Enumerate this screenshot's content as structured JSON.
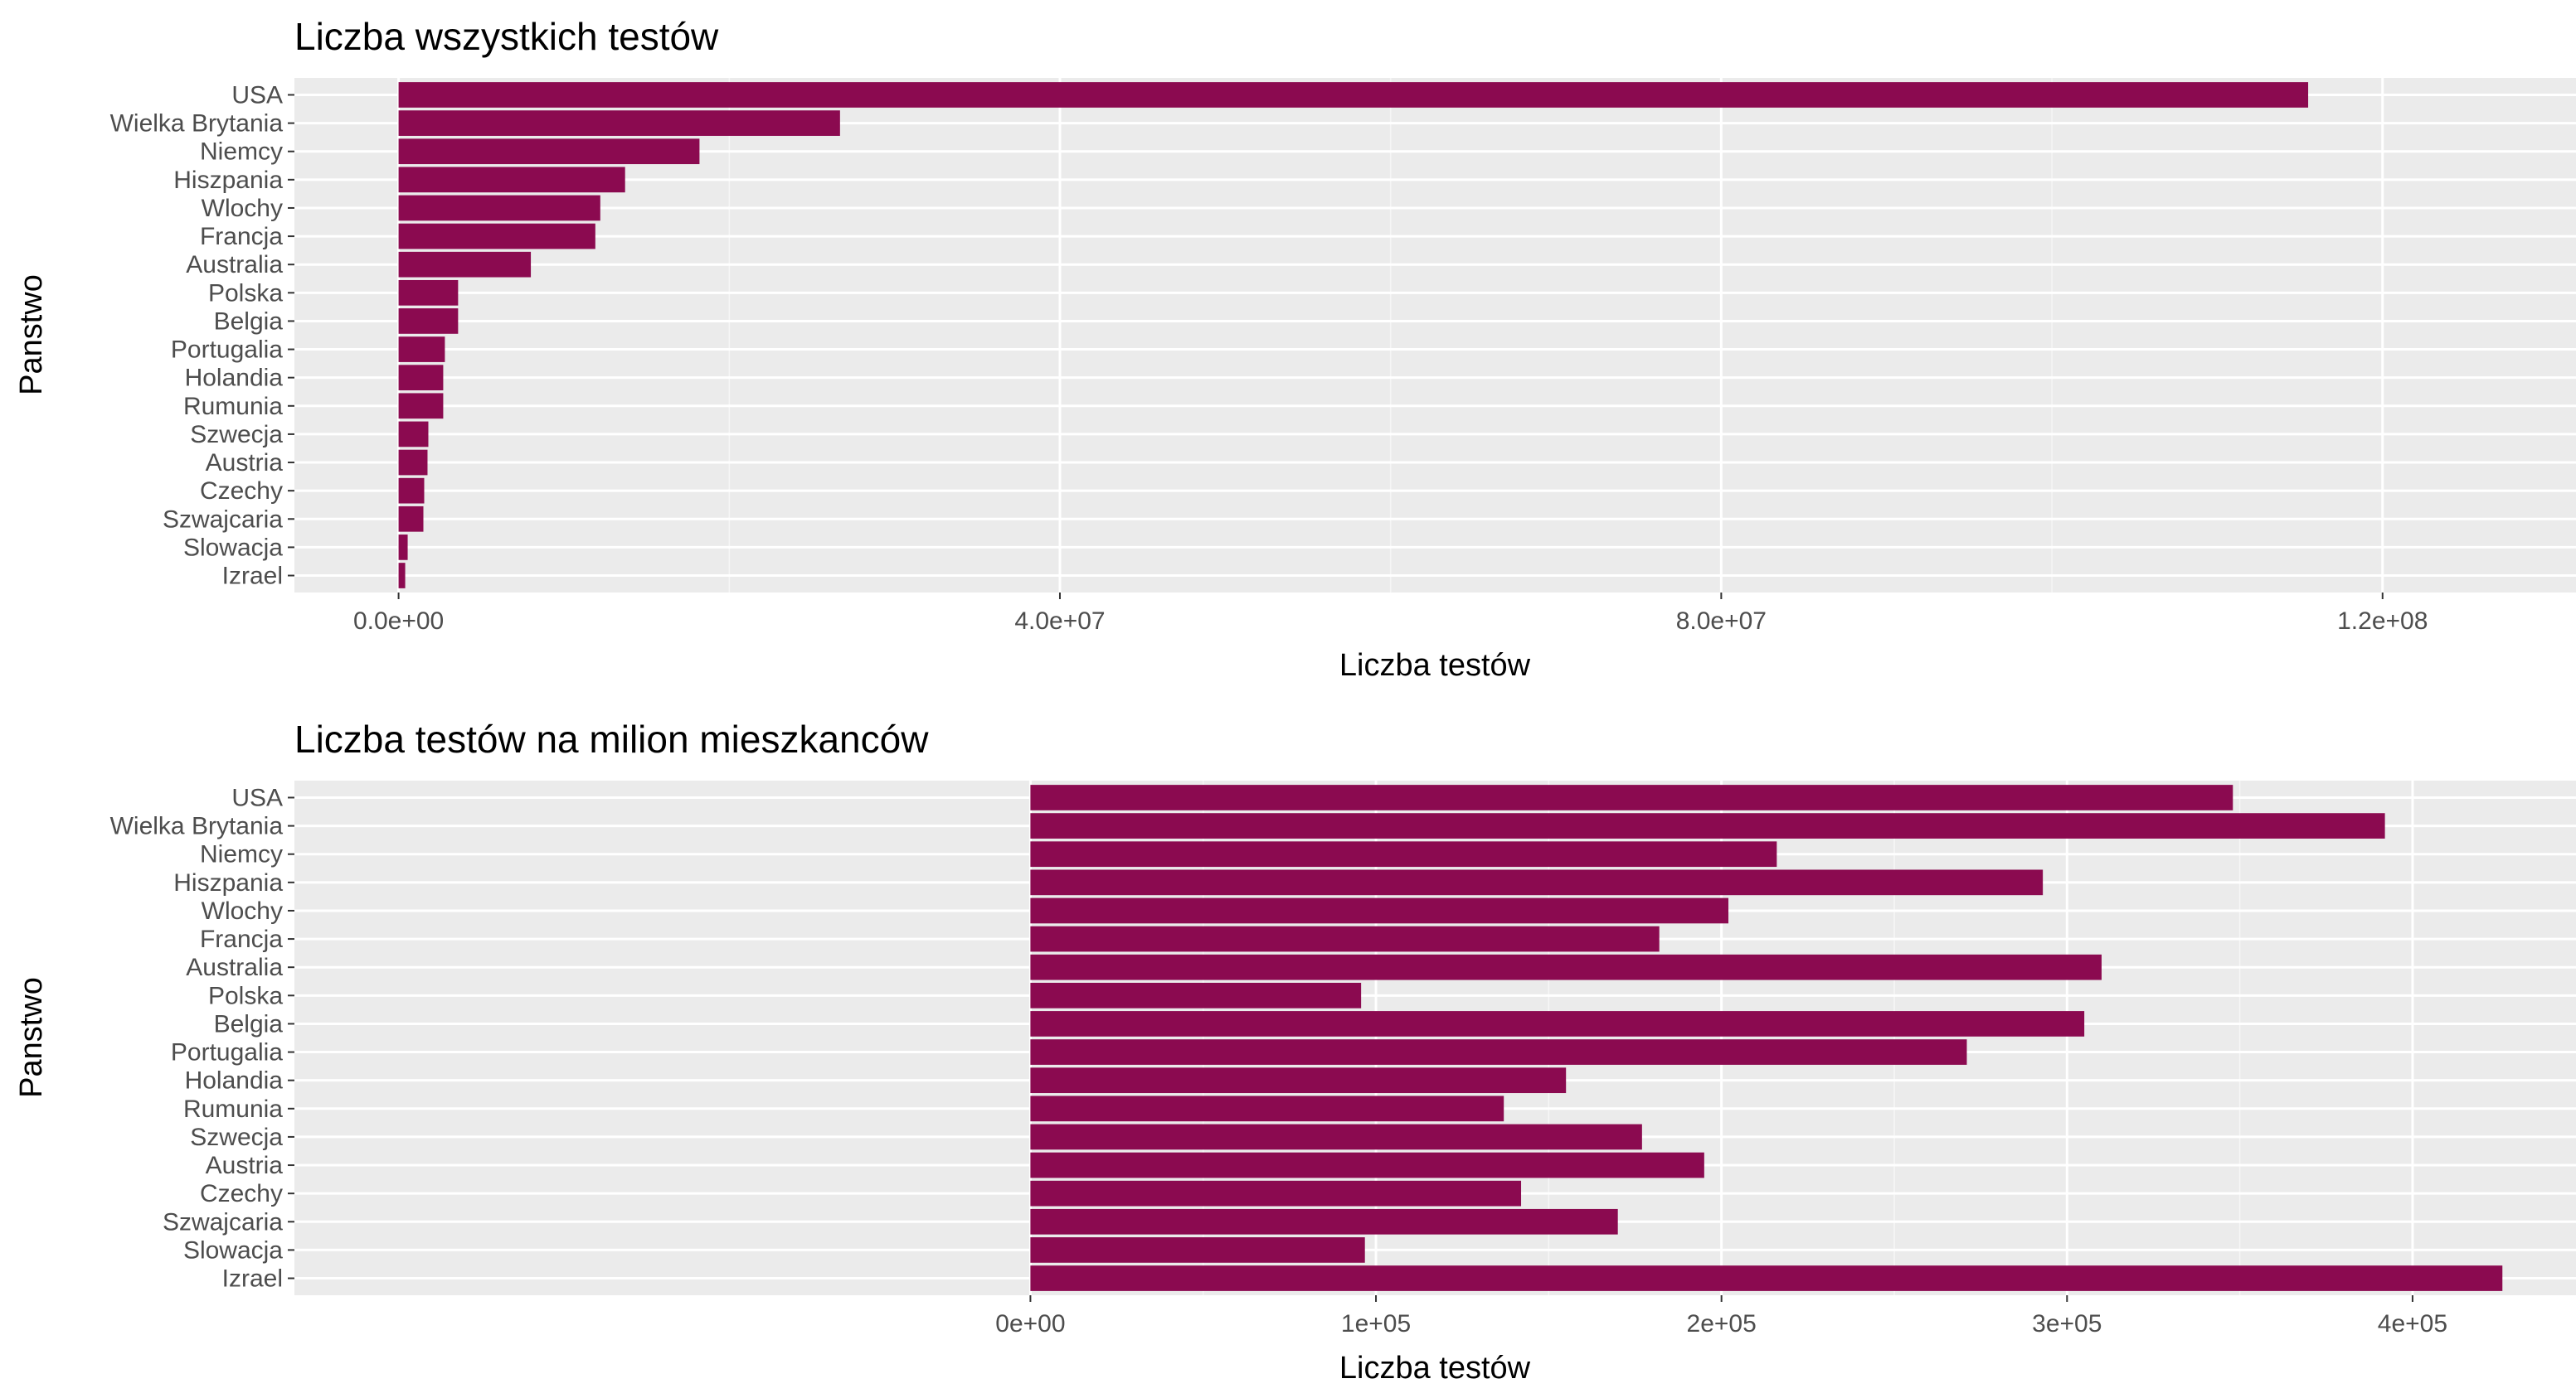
{
  "chart_data": [
    {
      "type": "bar",
      "orientation": "horizontal",
      "title": "Liczba wszystkich testów",
      "xlabel": "Liczba testów",
      "ylabel": "Panstwo",
      "categories": [
        "USA",
        "Wielka Brytania",
        "Niemcy",
        "Hiszpania",
        "Wlochy",
        "Francja",
        "Australia",
        "Polska",
        "Belgia",
        "Portugalia",
        "Holandia",
        "Rumunia",
        "Szwecja",
        "Austria",
        "Czechy",
        "Szwajcaria",
        "Slowacja",
        "Izrael"
      ],
      "values": [
        115500000,
        26700000,
        18200000,
        13700000,
        12200000,
        11900000,
        8000000,
        3600000,
        3600000,
        2800000,
        2700000,
        2700000,
        1800000,
        1750000,
        1550000,
        1500000,
        550000,
        400000
      ],
      "xlim": [
        -6300000,
        131700000
      ],
      "xticks": [
        0,
        40000000,
        80000000,
        120000000
      ],
      "xtick_labels": [
        "0.0e+00",
        "4.0e+07",
        "8.0e+07",
        "1.2e+08"
      ],
      "grid": true,
      "bar_color": "#8b0a50"
    },
    {
      "type": "bar",
      "orientation": "horizontal",
      "title": "Liczba testów na milion mieszkanców",
      "xlabel": "Liczba testów",
      "ylabel": "Panstwo",
      "categories": [
        "USA",
        "Wielka Brytania",
        "Niemcy",
        "Hiszpania",
        "Wlochy",
        "Francja",
        "Australia",
        "Polska",
        "Belgia",
        "Portugalia",
        "Holandia",
        "Rumunia",
        "Szwecja",
        "Austria",
        "Czechy",
        "Szwajcaria",
        "Slowacja",
        "Izrael"
      ],
      "values": [
        348000,
        392000,
        216000,
        293000,
        202000,
        182000,
        310000,
        95700,
        305000,
        271000,
        155000,
        137000,
        177000,
        195000,
        142000,
        170000,
        96800,
        426000
      ],
      "xlim": [
        -213000.0,
        447300
      ],
      "xticks": [
        0,
        100000,
        200000,
        300000,
        400000
      ],
      "xtick_labels": [
        "0e+00",
        "1e+05",
        "2e+05",
        "3e+05",
        "4e+05"
      ],
      "grid": true,
      "bar_color": "#8b0a50"
    }
  ]
}
